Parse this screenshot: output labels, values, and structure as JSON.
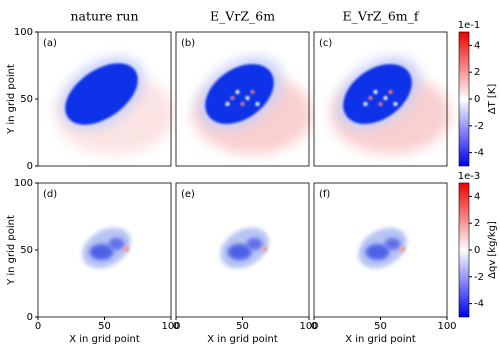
{
  "chart_data": [
    {
      "type": "heatmap",
      "title": "nature run",
      "label": "(a)",
      "xlim": [
        0,
        100
      ],
      "ylim": [
        0,
        100
      ],
      "yticks": [
        0,
        50,
        100
      ],
      "ylabel": "Y in grid point"
    },
    {
      "type": "heatmap",
      "title": "E_VrZ_6m",
      "label": "(b)",
      "xlim": [
        0,
        100
      ],
      "ylim": [
        0,
        100
      ]
    },
    {
      "type": "heatmap",
      "title": "E_VrZ_6m_f",
      "label": "(c)",
      "xlim": [
        0,
        100
      ],
      "ylim": [
        0,
        100
      ],
      "colorbar": {
        "label": "ΔT [K]",
        "offset": "1e-1",
        "lim": [
          -5,
          5
        ],
        "ticks": [
          -4,
          -2,
          0,
          2,
          4
        ]
      }
    },
    {
      "type": "heatmap",
      "label": "(d)",
      "xlim": [
        0,
        100
      ],
      "ylim": [
        0,
        100
      ],
      "xticks": [
        0,
        50,
        100
      ],
      "yticks": [
        0,
        50,
        100
      ],
      "xlabel": "X in grid point",
      "ylabel": "Y in grid point"
    },
    {
      "type": "heatmap",
      "label": "(e)",
      "xlim": [
        0,
        100
      ],
      "ylim": [
        0,
        100
      ],
      "xticks": [
        0,
        50,
        100
      ],
      "xlabel": "X in grid point"
    },
    {
      "type": "heatmap",
      "label": "(f)",
      "xlim": [
        0,
        100
      ],
      "ylim": [
        0,
        100
      ],
      "xticks": [
        0,
        50,
        100
      ],
      "xlabel": "X in grid point",
      "colorbar": {
        "label": "Δqv [kg/kg]",
        "offset": "1e-3",
        "lim": [
          -5,
          5
        ],
        "ticks": [
          -4,
          -2,
          0,
          2,
          4
        ]
      }
    }
  ]
}
